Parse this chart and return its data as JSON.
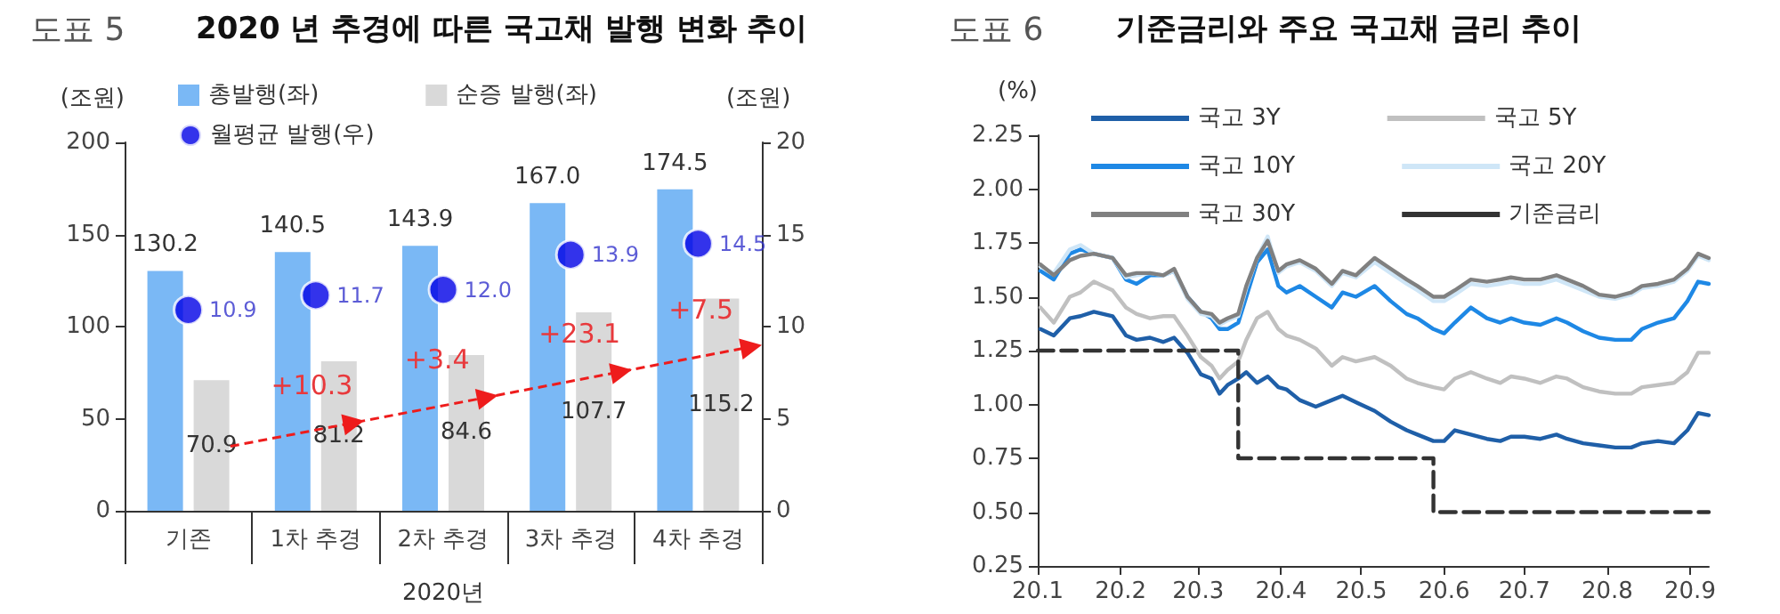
{
  "chart_data": [
    {
      "type": "bar",
      "title": "2020 년 추경에 따른 국고채 발행 변화 추이",
      "subtitle": "도표 5",
      "ylabel": "(조원)",
      "y2label": "(조원)",
      "xlabel": "2020년",
      "categories": [
        "기존",
        "1차 추경",
        "2차 추경",
        "3차 추경",
        "4차 추경"
      ],
      "series": [
        {
          "name": "총발행(좌)",
          "color": "#7ab8f5",
          "values": [
            130.2,
            140.5,
            143.9,
            167.0,
            174.5
          ],
          "value_labels": [
            "130.2",
            "140.5",
            "143.9",
            "167.0",
            "174.5"
          ]
        },
        {
          "name": "순증 발행(좌)",
          "color": "#d9d9d9",
          "values": [
            70.9,
            81.2,
            84.6,
            107.7,
            115.2
          ],
          "value_labels": [
            "70.9",
            "81.2",
            "84.6",
            "107.7",
            "115.2"
          ]
        },
        {
          "name": "월평균 발행(우)",
          "type": "scatter",
          "axis": "y2",
          "color": "#0000e6",
          "values": [
            10.9,
            11.7,
            12.0,
            13.9,
            14.5
          ],
          "value_labels": [
            "10.9",
            "11.7",
            "12.0",
            "13.9",
            "14.5"
          ]
        }
      ],
      "ylim": [
        0,
        200
      ],
      "yticks": [
        0,
        50,
        100,
        150,
        200
      ],
      "y2lim": [
        0,
        20
      ],
      "y2ticks": [
        0,
        5,
        10,
        15,
        20
      ],
      "annotations": [
        "+10.3",
        "+3.4",
        "+23.1",
        "+7.5"
      ],
      "legend": "top left",
      "grid": false,
      "marker": "circle"
    },
    {
      "type": "line",
      "title": "기준금리와 주요 국고채 금리 추이",
      "subtitle": "도표 6",
      "ylabel": "(%)",
      "x": [
        "2020-01-02",
        "2020-01-07",
        "2020-01-13",
        "2020-01-17",
        "2020-01-22",
        "2020-01-29",
        "2020-02-03",
        "2020-02-07",
        "2020-02-12",
        "2020-02-17",
        "2020-02-21",
        "2020-02-26",
        "2020-03-02",
        "2020-03-06",
        "2020-03-09",
        "2020-03-12",
        "2020-03-16",
        "2020-03-19",
        "2020-03-23",
        "2020-03-27",
        "2020-03-31",
        "2020-04-03",
        "2020-04-08",
        "2020-04-14",
        "2020-04-20",
        "2020-04-24",
        "2020-04-29",
        "2020-05-06",
        "2020-05-12",
        "2020-05-18",
        "2020-05-22",
        "2020-05-28",
        "2020-06-01",
        "2020-06-05",
        "2020-06-11",
        "2020-06-17",
        "2020-06-22",
        "2020-06-26",
        "2020-07-01",
        "2020-07-07",
        "2020-07-13",
        "2020-07-17",
        "2020-07-23",
        "2020-07-29",
        "2020-08-04",
        "2020-08-10",
        "2020-08-14",
        "2020-08-20",
        "2020-08-26",
        "2020-08-31",
        "2020-09-04",
        "2020-09-08"
      ],
      "series": [
        {
          "name": "국고 3Y",
          "color": "#1f5fa8",
          "values": [
            1.35,
            1.32,
            1.4,
            1.41,
            1.43,
            1.41,
            1.32,
            1.3,
            1.31,
            1.29,
            1.31,
            1.24,
            1.14,
            1.12,
            1.05,
            1.09,
            1.12,
            1.15,
            1.1,
            1.13,
            1.08,
            1.07,
            1.02,
            0.99,
            1.02,
            1.04,
            1.01,
            0.97,
            0.92,
            0.88,
            0.86,
            0.83,
            0.83,
            0.88,
            0.86,
            0.84,
            0.83,
            0.85,
            0.85,
            0.84,
            0.86,
            0.84,
            0.82,
            0.81,
            0.8,
            0.8,
            0.82,
            0.83,
            0.82,
            0.88,
            0.96,
            0.95
          ]
        },
        {
          "name": "국고 5Y",
          "color": "#c0c0c0",
          "values": [
            1.45,
            1.38,
            1.5,
            1.52,
            1.57,
            1.53,
            1.45,
            1.42,
            1.4,
            1.41,
            1.41,
            1.32,
            1.22,
            1.18,
            1.12,
            1.16,
            1.2,
            1.3,
            1.4,
            1.43,
            1.35,
            1.32,
            1.3,
            1.26,
            1.18,
            1.22,
            1.2,
            1.22,
            1.18,
            1.12,
            1.1,
            1.08,
            1.07,
            1.12,
            1.15,
            1.12,
            1.1,
            1.13,
            1.12,
            1.1,
            1.13,
            1.12,
            1.08,
            1.06,
            1.05,
            1.05,
            1.08,
            1.09,
            1.1,
            1.15,
            1.24,
            1.24
          ]
        },
        {
          "name": "국고 10Y",
          "color": "#1e88e5",
          "values": [
            1.62,
            1.58,
            1.7,
            1.72,
            1.7,
            1.68,
            1.58,
            1.56,
            1.6,
            1.6,
            1.62,
            1.5,
            1.43,
            1.4,
            1.35,
            1.35,
            1.38,
            1.5,
            1.66,
            1.72,
            1.55,
            1.52,
            1.55,
            1.5,
            1.45,
            1.52,
            1.5,
            1.55,
            1.48,
            1.42,
            1.4,
            1.35,
            1.33,
            1.38,
            1.45,
            1.4,
            1.38,
            1.4,
            1.38,
            1.37,
            1.4,
            1.38,
            1.34,
            1.31,
            1.3,
            1.3,
            1.35,
            1.38,
            1.4,
            1.48,
            1.57,
            1.56
          ]
        },
        {
          "name": "국고 20Y",
          "color": "#cfe6f7",
          "values": [
            1.64,
            1.61,
            1.72,
            1.74,
            1.7,
            1.68,
            1.59,
            1.6,
            1.61,
            1.6,
            1.62,
            1.49,
            1.42,
            1.41,
            1.37,
            1.39,
            1.41,
            1.54,
            1.68,
            1.78,
            1.61,
            1.64,
            1.66,
            1.62,
            1.55,
            1.61,
            1.59,
            1.66,
            1.61,
            1.56,
            1.53,
            1.48,
            1.48,
            1.51,
            1.56,
            1.55,
            1.56,
            1.57,
            1.56,
            1.56,
            1.58,
            1.56,
            1.53,
            1.5,
            1.49,
            1.51,
            1.54,
            1.55,
            1.57,
            1.62,
            1.69,
            1.67
          ]
        },
        {
          "name": "국고 30Y",
          "color": "#808080",
          "values": [
            1.65,
            1.6,
            1.67,
            1.69,
            1.7,
            1.68,
            1.6,
            1.61,
            1.61,
            1.6,
            1.63,
            1.5,
            1.43,
            1.42,
            1.38,
            1.4,
            1.42,
            1.55,
            1.68,
            1.76,
            1.62,
            1.65,
            1.67,
            1.63,
            1.56,
            1.62,
            1.6,
            1.68,
            1.63,
            1.58,
            1.55,
            1.5,
            1.5,
            1.53,
            1.58,
            1.57,
            1.58,
            1.59,
            1.58,
            1.58,
            1.6,
            1.58,
            1.55,
            1.51,
            1.5,
            1.52,
            1.55,
            1.56,
            1.58,
            1.63,
            1.7,
            1.68
          ]
        },
        {
          "name": "기준금리",
          "type": "step",
          "color": "#333333",
          "line_style": "dashed",
          "x": [
            "2020-01-01",
            "2020-03-16",
            "2020-05-28",
            "2020-09-08"
          ],
          "values": [
            1.25,
            0.75,
            0.5,
            0.5
          ]
        }
      ],
      "xlim": [
        "2020-01-01",
        "2020-09-08"
      ],
      "xticks": [
        {
          "value": "2020-01-01",
          "label": "20.1"
        },
        {
          "value": "2020-02-01",
          "label": "20.2"
        },
        {
          "value": "2020-03-01",
          "label": "20.3"
        },
        {
          "value": "2020-04-01",
          "label": "20.4"
        },
        {
          "value": "2020-05-01",
          "label": "20.5"
        },
        {
          "value": "2020-06-01",
          "label": "20.6"
        },
        {
          "value": "2020-07-01",
          "label": "20.7"
        },
        {
          "value": "2020-08-01",
          "label": "20.8"
        },
        {
          "value": "2020-09-01",
          "label": "20.9"
        }
      ],
      "ylim": [
        0.25,
        2.25
      ],
      "yticks": [
        {
          "value": 0.25,
          "label": "0.25"
        },
        {
          "value": 0.5,
          "label": "0.50"
        },
        {
          "value": 0.75,
          "label": "0.75"
        },
        {
          "value": 1,
          "label": "1.00"
        },
        {
          "value": 1.25,
          "label": "1.25"
        },
        {
          "value": 1.5,
          "label": "1.50"
        },
        {
          "value": 1.75,
          "label": "1.75"
        },
        {
          "value": 2,
          "label": "2.00"
        },
        {
          "value": 2.25,
          "label": "2.25"
        }
      ],
      "legend": "top left",
      "grid": false,
      "marker": "none",
      "line_style": "solid"
    }
  ]
}
